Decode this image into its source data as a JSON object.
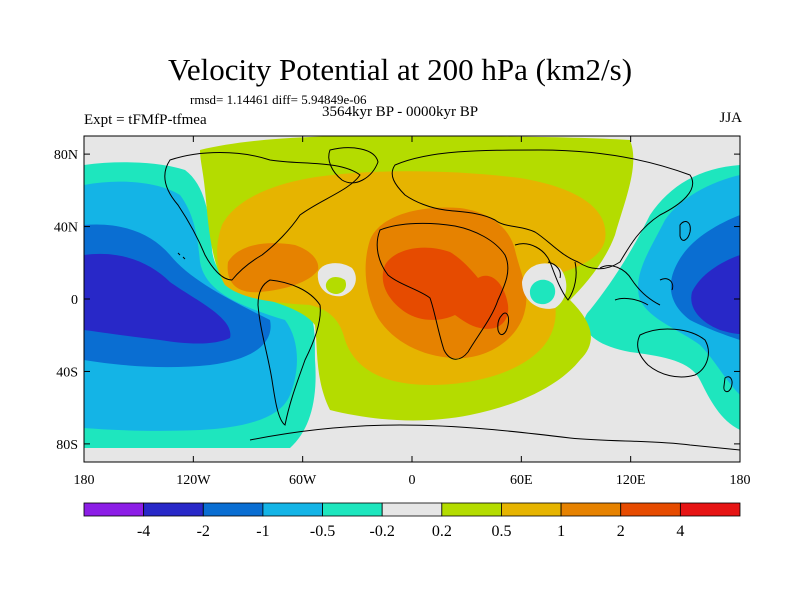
{
  "header": {
    "title": "Velocity Potential at 200 hPa (km2/s)",
    "stats": "rmsd= 1.14461  diff= 5.94849e-06",
    "experiment": "Expt = tFMfP-tfmea",
    "period": "3564kyr BP - 0000kyr BP",
    "season": "JJA"
  },
  "map": {
    "lat_labels": [
      {
        "value": 80,
        "label": "80N"
      },
      {
        "value": 40,
        "label": "40N"
      },
      {
        "value": 0,
        "label": "0"
      },
      {
        "value": -40,
        "label": "40S"
      },
      {
        "value": -80,
        "label": "80S"
      }
    ],
    "lon_labels": [
      {
        "value": -180,
        "label": "180"
      },
      {
        "value": -120,
        "label": "120W"
      },
      {
        "value": -60,
        "label": "60W"
      },
      {
        "value": 0,
        "label": "0"
      },
      {
        "value": 60,
        "label": "60E"
      },
      {
        "value": 120,
        "label": "120E"
      },
      {
        "value": 180,
        "label": "180"
      }
    ],
    "lon_range": [
      -180,
      180
    ],
    "lat_range": [
      -90,
      90
    ]
  },
  "colorbar": {
    "colors": [
      "#8c1ee6",
      "#2828c8",
      "#0a6ed2",
      "#14b4e6",
      "#1ee6be",
      "#e6e6e6",
      "#b4dc00",
      "#e6b400",
      "#e68200",
      "#e64b00",
      "#e61414"
    ],
    "labels": [
      "-4",
      "-2",
      "-1",
      "-0.5",
      "-0.2",
      "0.2",
      "0.5",
      "1",
      "2",
      "4"
    ]
  },
  "colors": {
    "neutral": "#e6e6e6",
    "coast": "#000000"
  }
}
